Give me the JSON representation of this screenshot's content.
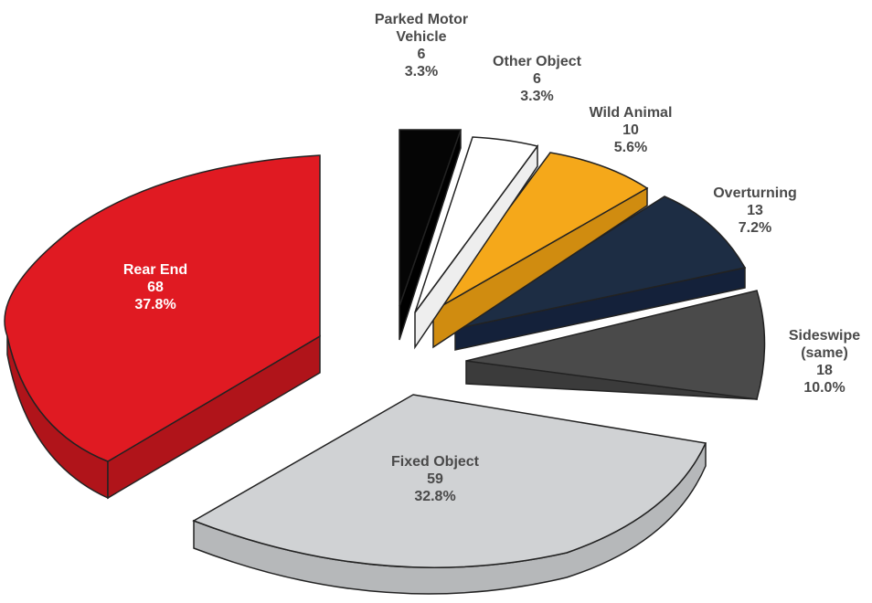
{
  "chart_data": {
    "type": "pie",
    "exploded": true,
    "three_d": true,
    "slices": [
      {
        "label": "Parked Motor Vehicle",
        "label_lines": [
          "Parked Motor",
          "Vehicle"
        ],
        "value": 6,
        "percent": "3.3%",
        "color": "#050505"
      },
      {
        "label": "Other Object",
        "label_lines": [
          "Other Object"
        ],
        "value": 6,
        "percent": "3.3%",
        "color": "#ffffff"
      },
      {
        "label": "Wild Animal",
        "label_lines": [
          "Wild Animal"
        ],
        "value": 10,
        "percent": "5.6%",
        "color": "#f5a81a"
      },
      {
        "label": "Overturning",
        "label_lines": [
          "Overturning"
        ],
        "value": 13,
        "percent": "7.2%",
        "color": "#1d2d44"
      },
      {
        "label": "Sideswipe (same)",
        "label_lines": [
          "Sideswipe",
          "(same)"
        ],
        "value": 18,
        "percent": "10.0%",
        "color": "#4a4a4a"
      },
      {
        "label": "Fixed Object",
        "label_lines": [
          "Fixed Object"
        ],
        "value": 59,
        "percent": "32.8%",
        "color": "#d0d2d4"
      },
      {
        "label": "Rear End",
        "label_lines": [
          "Rear End"
        ],
        "value": 68,
        "percent": "37.8%",
        "color": "#e01a22"
      }
    ]
  }
}
